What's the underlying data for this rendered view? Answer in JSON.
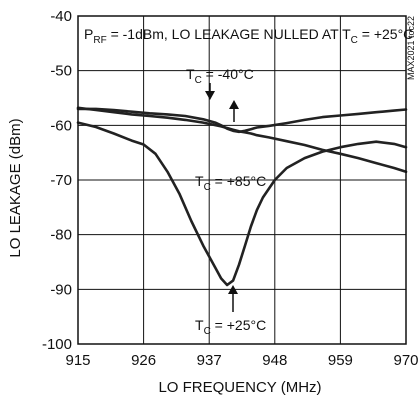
{
  "chart_data": {
    "type": "line",
    "title": "",
    "xlabel": "LO FREQUENCY (MHz)",
    "ylabel": "LO LEAKAGE (dBm)",
    "xlim": [
      915,
      970
    ],
    "ylim": [
      -100,
      -40
    ],
    "xticks": [
      915,
      926,
      937,
      948,
      959,
      970
    ],
    "yticks": [
      -40,
      -50,
      -60,
      -70,
      -80,
      -90,
      -100
    ],
    "grid": true,
    "legend": "none",
    "line_color": "#222222",
    "condition_label": {
      "p": "P",
      "p_sub": "RF",
      "mid": " = -1dBm, LO LEAKAGE NULLED AT T",
      "t_sub": "C",
      "tail": " = +25°C"
    },
    "watermark": "MAX2021 toc22",
    "annotations": [
      {
        "t": "T",
        "sub": "C",
        "tail": " = -40°C"
      },
      {
        "t": "T",
        "sub": "C",
        "tail": " = +85°C"
      },
      {
        "t": "T",
        "sub": "C",
        "tail": " = +25°C"
      }
    ],
    "series": [
      {
        "x": [
          915,
          918,
          921,
          924,
          927,
          930,
          933,
          936,
          939,
          941,
          942,
          943,
          944,
          945,
          947,
          950,
          953,
          956,
          959,
          962,
          965,
          968,
          970
        ],
        "y": [
          -56.8,
          -57.2,
          -57.6,
          -58.0,
          -58.3,
          -58.6,
          -59.0,
          -59.5,
          -60.2,
          -60.8,
          -61.1,
          -61.3,
          -61.5,
          -61.8,
          -62.2,
          -62.9,
          -63.6,
          -64.5,
          -65.2,
          -66.0,
          -66.9,
          -67.8,
          -68.5
        ]
      },
      {
        "x": [
          915,
          918,
          921,
          924,
          927,
          930,
          933,
          936,
          938,
          939,
          940,
          941,
          942,
          943,
          944,
          945,
          947,
          950,
          953,
          956,
          959,
          962,
          965,
          968,
          970
        ],
        "y": [
          -57.0,
          -57.0,
          -57.2,
          -57.5,
          -57.8,
          -58.0,
          -58.3,
          -58.9,
          -59.5,
          -60.0,
          -60.6,
          -61.0,
          -61.2,
          -61.0,
          -60.7,
          -60.4,
          -60.1,
          -59.6,
          -59.0,
          -58.5,
          -58.2,
          -57.9,
          -57.6,
          -57.3,
          -57.1
        ]
      },
      {
        "x": [
          915,
          918,
          921,
          924,
          926,
          928,
          930,
          932,
          934,
          936,
          938,
          939,
          940,
          941,
          942,
          943,
          944,
          945,
          946,
          948,
          950,
          953,
          956,
          959,
          962,
          965,
          968,
          970
        ],
        "y": [
          -59.5,
          -60.3,
          -61.5,
          -62.8,
          -63.5,
          -65.2,
          -68.5,
          -72.5,
          -77.5,
          -82.0,
          -86.0,
          -88.0,
          -89.2,
          -88.4,
          -85.5,
          -82.0,
          -78.5,
          -75.5,
          -73.2,
          -70.0,
          -67.8,
          -66.0,
          -64.8,
          -64.0,
          -63.4,
          -63.0,
          -63.4,
          -64.0
        ]
      }
    ]
  }
}
